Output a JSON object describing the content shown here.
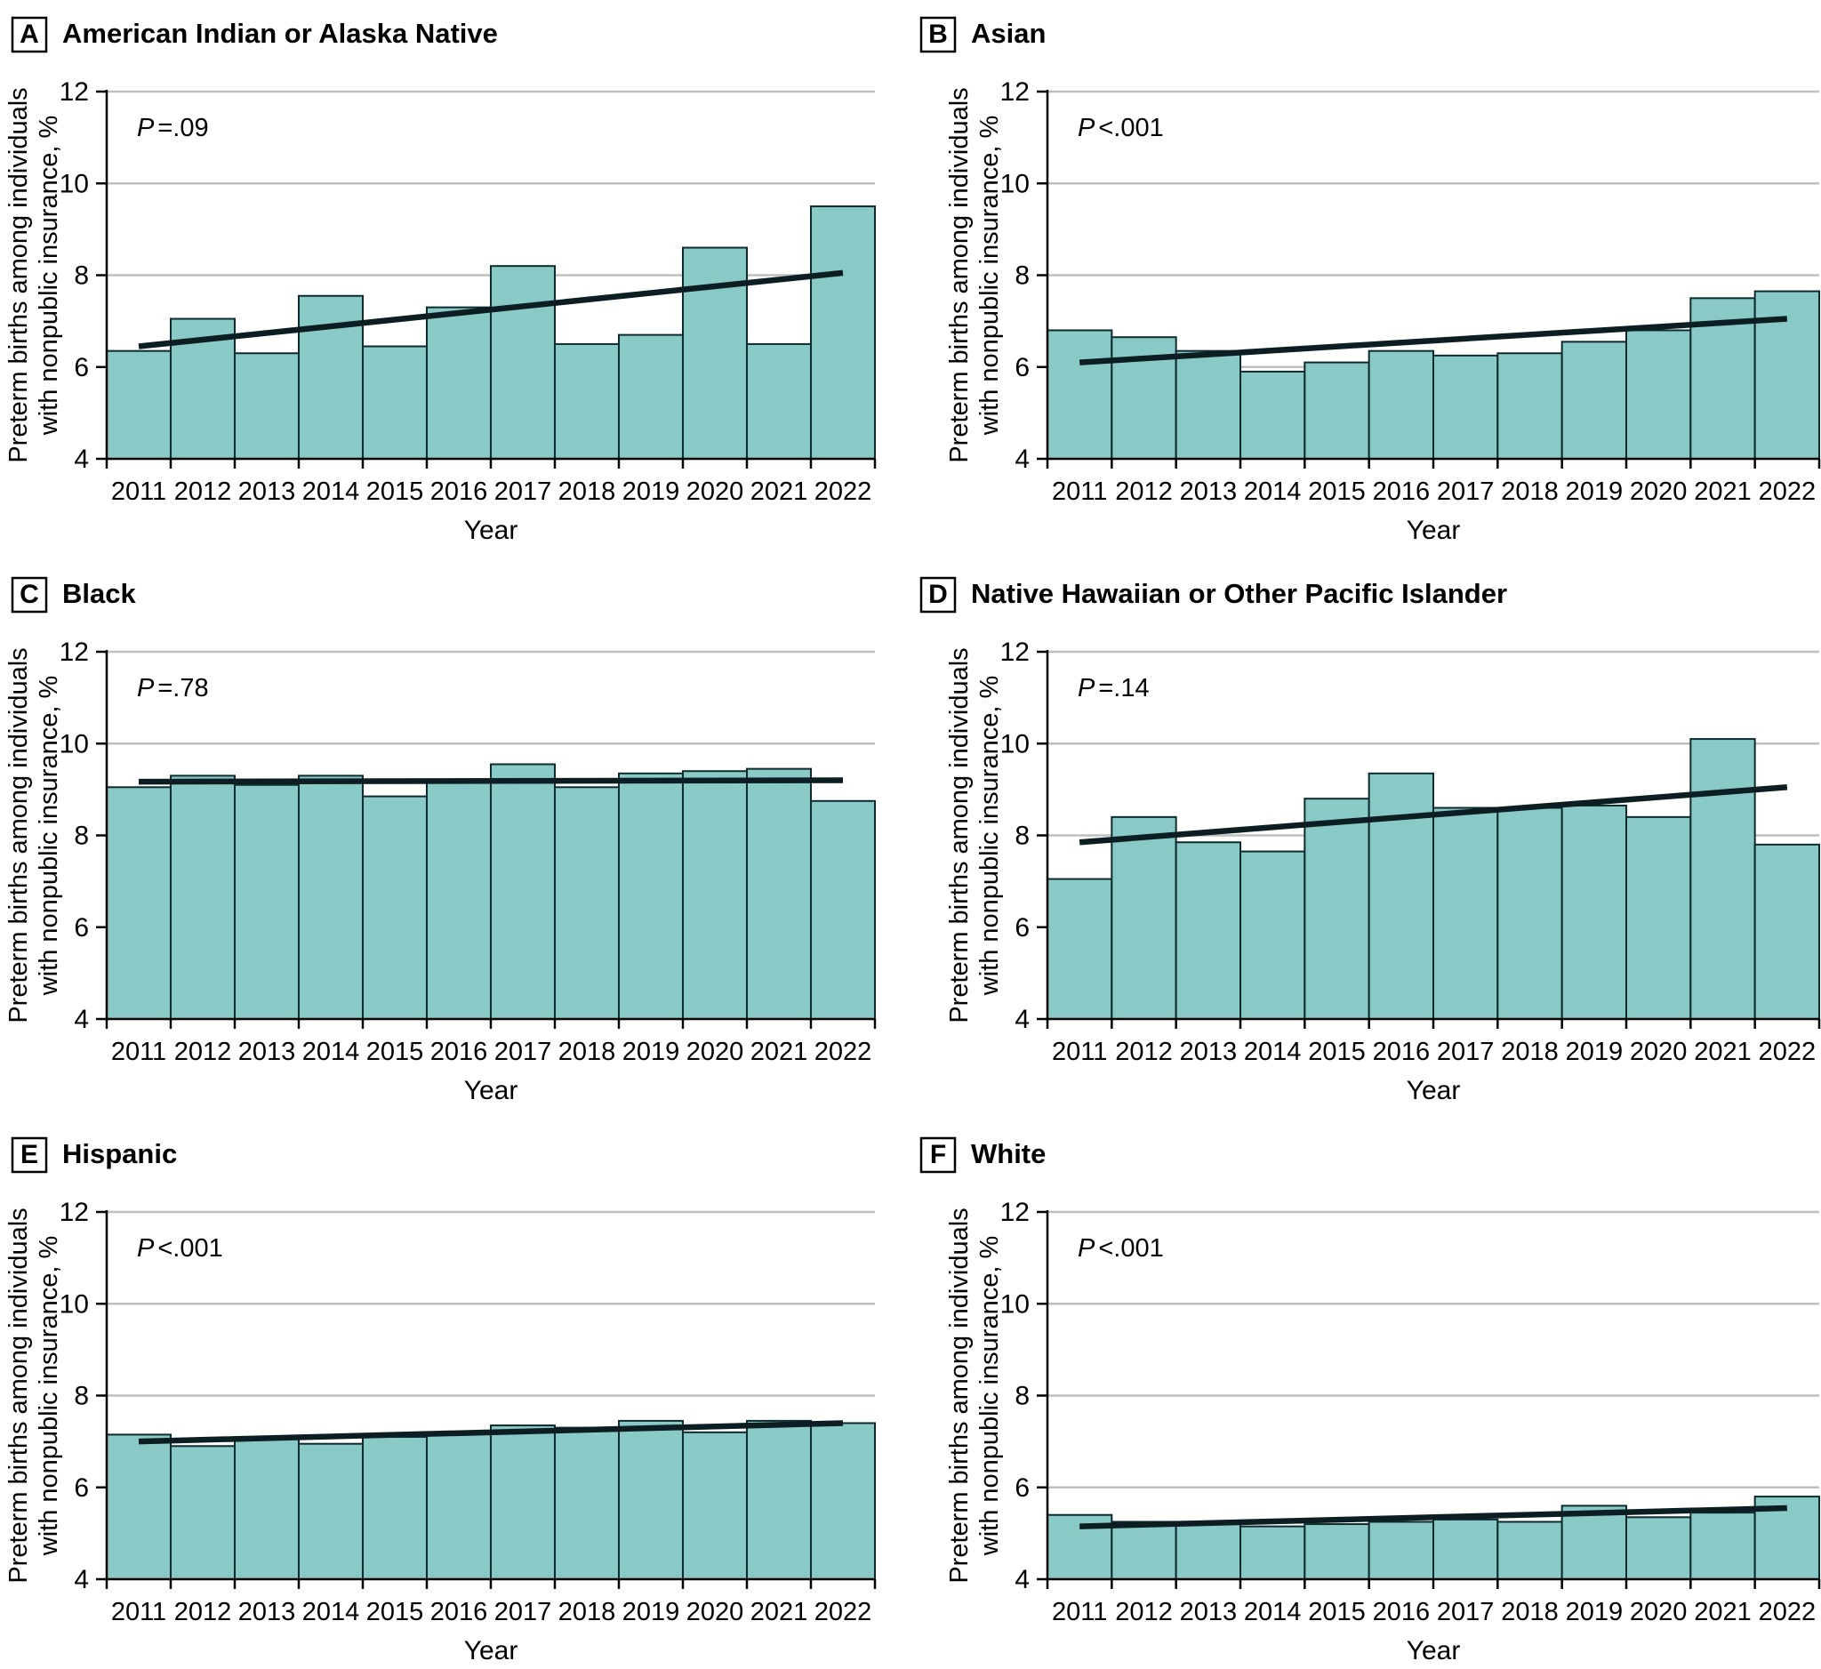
{
  "figure": {
    "x_axis_label": "Year",
    "y_axis_label_line1": "Preterm births among individuals",
    "y_axis_label_line2": "with nonpublic insurance, %",
    "colors": {
      "bar_fill": "#89c9c6",
      "bar_stroke": "#0d2b2e",
      "trend_line": "#0c1e21",
      "gridline": "#bfbfbf",
      "axis": "#000000",
      "text": "#000000"
    }
  },
  "chart_data": [
    {
      "type": "bar",
      "panel_label": "A",
      "title": "American Indian or Alaska Native",
      "p_italic": "P",
      "p_rest": "=.09",
      "categories": [
        2011,
        2012,
        2013,
        2014,
        2015,
        2016,
        2017,
        2018,
        2019,
        2020,
        2021,
        2022
      ],
      "values": [
        6.35,
        7.05,
        6.3,
        7.55,
        6.45,
        7.3,
        8.2,
        6.5,
        6.7,
        8.6,
        6.5,
        9.5
      ],
      "trend_line": {
        "start": 6.45,
        "end": 8.05
      },
      "xlabel": "Year",
      "ylabel": "Preterm births among individuals with nonpublic insurance, %",
      "ylim": [
        4,
        12
      ],
      "yticks": [
        4,
        6,
        8,
        10,
        12
      ],
      "grid": true,
      "legend": "none"
    },
    {
      "type": "bar",
      "panel_label": "B",
      "title": "Asian",
      "p_italic": "P",
      "p_rest": "<.001",
      "categories": [
        2011,
        2012,
        2013,
        2014,
        2015,
        2016,
        2017,
        2018,
        2019,
        2020,
        2021,
        2022
      ],
      "values": [
        6.8,
        6.65,
        6.35,
        5.9,
        6.1,
        6.35,
        6.25,
        6.3,
        6.55,
        6.8,
        7.5,
        7.65
      ],
      "trend_line": {
        "start": 6.1,
        "end": 7.05
      },
      "xlabel": "Year",
      "ylabel": "Preterm births among individuals with nonpublic insurance, %",
      "ylim": [
        4,
        12
      ],
      "yticks": [
        4,
        6,
        8,
        10,
        12
      ],
      "grid": true,
      "legend": "none"
    },
    {
      "type": "bar",
      "panel_label": "C",
      "title": "Black",
      "p_italic": "P",
      "p_rest": "=.78",
      "categories": [
        2011,
        2012,
        2013,
        2014,
        2015,
        2016,
        2017,
        2018,
        2019,
        2020,
        2021,
        2022
      ],
      "values": [
        9.05,
        9.3,
        9.1,
        9.3,
        8.85,
        9.15,
        9.55,
        9.05,
        9.35,
        9.4,
        9.45,
        8.75
      ],
      "trend_line": {
        "start": 9.17,
        "end": 9.2
      },
      "xlabel": "Year",
      "ylabel": "Preterm births among individuals with nonpublic insurance, %",
      "ylim": [
        4,
        12
      ],
      "yticks": [
        4,
        6,
        8,
        10,
        12
      ],
      "grid": true,
      "legend": "none"
    },
    {
      "type": "bar",
      "panel_label": "D",
      "title": "Native Hawaiian or Other Pacific Islander",
      "p_italic": "P",
      "p_rest": "=.14",
      "categories": [
        2011,
        2012,
        2013,
        2014,
        2015,
        2016,
        2017,
        2018,
        2019,
        2020,
        2021,
        2022
      ],
      "values": [
        7.05,
        8.4,
        7.85,
        7.65,
        8.8,
        9.35,
        8.6,
        8.6,
        8.65,
        8.4,
        10.1,
        7.8
      ],
      "trend_line": {
        "start": 7.85,
        "end": 9.05
      },
      "xlabel": "Year",
      "ylabel": "Preterm births among individuals with nonpublic insurance, %",
      "ylim": [
        4,
        12
      ],
      "yticks": [
        4,
        6,
        8,
        10,
        12
      ],
      "grid": true,
      "legend": "none"
    },
    {
      "type": "bar",
      "panel_label": "E",
      "title": "Hispanic",
      "p_italic": "P",
      "p_rest": "<.001",
      "categories": [
        2011,
        2012,
        2013,
        2014,
        2015,
        2016,
        2017,
        2018,
        2019,
        2020,
        2021,
        2022
      ],
      "values": [
        7.15,
        6.9,
        7.1,
        6.95,
        7.1,
        7.2,
        7.35,
        7.3,
        7.45,
        7.2,
        7.45,
        7.4
      ],
      "trend_line": {
        "start": 7.0,
        "end": 7.4
      },
      "xlabel": "Year",
      "ylabel": "Preterm births among individuals with nonpublic insurance, %",
      "ylim": [
        4,
        12
      ],
      "yticks": [
        4,
        6,
        8,
        10,
        12
      ],
      "grid": true,
      "legend": "none"
    },
    {
      "type": "bar",
      "panel_label": "F",
      "title": "White",
      "p_italic": "P",
      "p_rest": "<.001",
      "categories": [
        2011,
        2012,
        2013,
        2014,
        2015,
        2016,
        2017,
        2018,
        2019,
        2020,
        2021,
        2022
      ],
      "values": [
        5.4,
        5.25,
        5.25,
        5.15,
        5.2,
        5.25,
        5.3,
        5.25,
        5.6,
        5.35,
        5.45,
        5.8
      ],
      "trend_line": {
        "start": 5.15,
        "end": 5.55
      },
      "xlabel": "Year",
      "ylabel": "Preterm births among individuals with nonpublic insurance, %",
      "ylim": [
        4,
        12
      ],
      "yticks": [
        4,
        6,
        8,
        10,
        12
      ],
      "grid": true,
      "legend": "none"
    }
  ]
}
